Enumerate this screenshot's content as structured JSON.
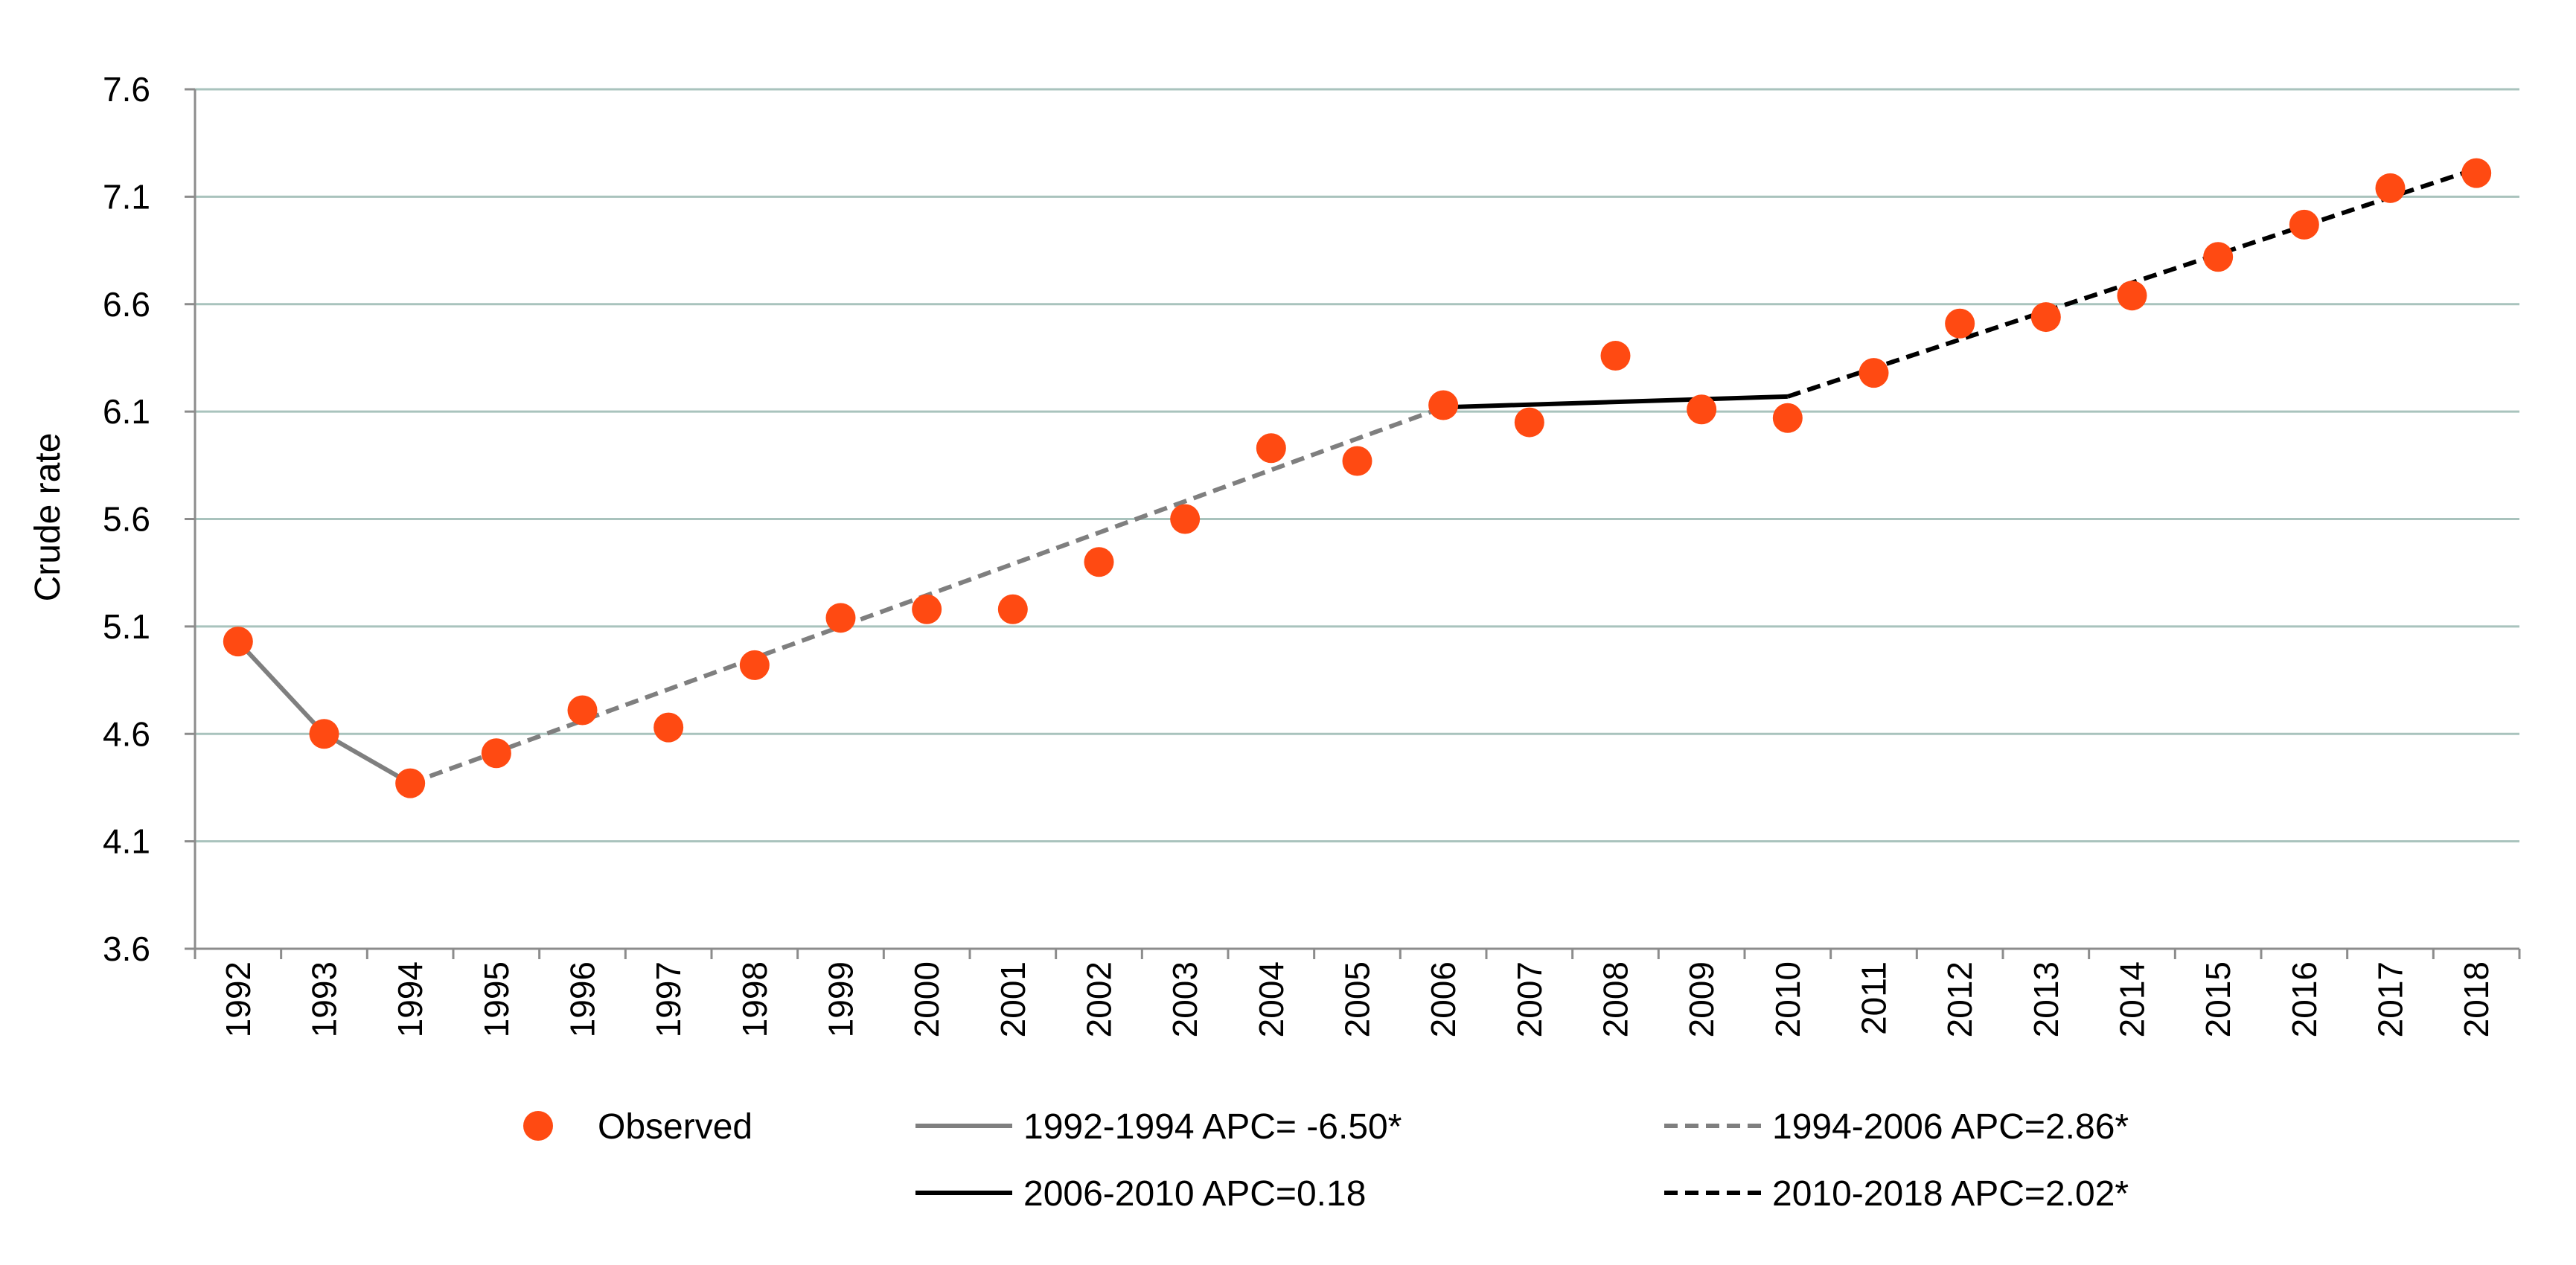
{
  "chart_data": {
    "type": "scatter",
    "ylabel": "Crude rate",
    "xlabel": "",
    "ylim": [
      3.6,
      7.6
    ],
    "yticks": [
      3.6,
      4.1,
      4.6,
      5.1,
      5.6,
      6.1,
      6.6,
      7.1,
      7.6
    ],
    "ytick_labels": [
      "3.6",
      "4.1",
      "4.6",
      "5.1",
      "5.6",
      "6.1",
      "6.6",
      "7.1",
      "7.6"
    ],
    "x": [
      "1992",
      "1993",
      "1994",
      "1995",
      "1996",
      "1997",
      "1998",
      "1999",
      "2000",
      "2001",
      "2002",
      "2003",
      "2004",
      "2005",
      "2006",
      "2007",
      "2008",
      "2009",
      "2010",
      "2011",
      "2012",
      "2013",
      "2014",
      "2015",
      "2016",
      "2017",
      "2018"
    ],
    "grid": true,
    "legend_position": "bottom",
    "observed": {
      "name": "Observed",
      "color": "#FF4A12",
      "values": [
        5.03,
        4.6,
        4.37,
        4.51,
        4.71,
        4.63,
        4.92,
        5.14,
        5.18,
        5.18,
        5.4,
        5.6,
        5.93,
        5.87,
        6.13,
        6.05,
        6.36,
        6.11,
        6.07,
        6.28,
        6.51,
        6.54,
        6.64,
        6.82,
        6.97,
        7.14,
        7.21
      ]
    },
    "segments": [
      {
        "name": "1992-1994 APC= -6.50*",
        "color": "#7F7F7F",
        "dash": "solid",
        "points": [
          [
            "1992",
            5.03
          ],
          [
            "1993",
            4.6
          ],
          [
            "1994",
            4.37
          ]
        ]
      },
      {
        "name": "1994-2006 APC=2.86*",
        "color": "#7F7F7F",
        "dash": "dashed",
        "points": [
          [
            "1994",
            4.37
          ],
          [
            "2006",
            6.12
          ]
        ]
      },
      {
        "name": "2006-2010 APC=0.18",
        "color": "#000000",
        "dash": "solid",
        "points": [
          [
            "2006",
            6.12
          ],
          [
            "2010",
            6.17
          ]
        ]
      },
      {
        "name": "2010-2018 APC=2.02*",
        "color": "#000000",
        "dash": "dashed",
        "points": [
          [
            "2010",
            6.17
          ],
          [
            "2018",
            7.23
          ]
        ]
      }
    ]
  }
}
